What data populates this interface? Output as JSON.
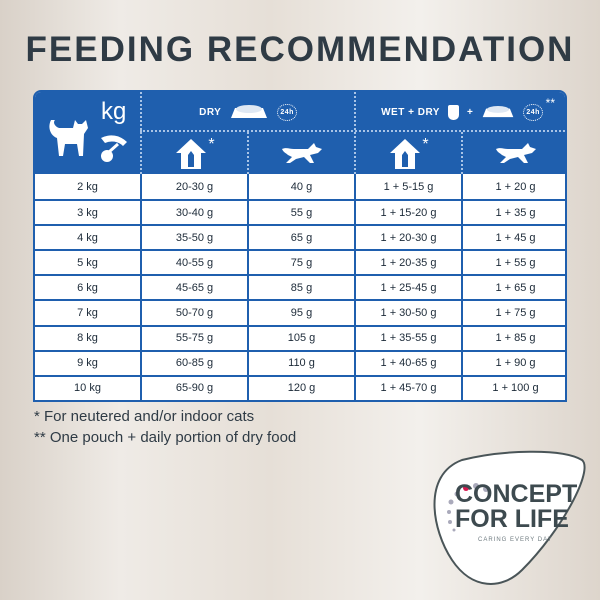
{
  "title": "FEEDING RECOMMENDATION",
  "header": {
    "unit": "kg",
    "dry": "DRY",
    "wet_dry": "WET + DRY",
    "plus": "+",
    "per_day": "24h",
    "double_star": "**",
    "star": "*",
    "icons": [
      "cat-icon",
      "scale-icon",
      "dry-food-bowl-icon",
      "clock-24h-icon",
      "pouch-icon",
      "indoor-cat-house-icon",
      "running-cat-icon"
    ]
  },
  "columns": [
    "Weight",
    "Dry – indoor/neutered",
    "Dry – active",
    "Wet + Dry – indoor/neutered",
    "Wet + Dry – active"
  ],
  "rows": [
    [
      "2 kg",
      "20-30 g",
      "40 g",
      "1 + 5-15 g",
      "1 + 20 g"
    ],
    [
      "3 kg",
      "30-40 g",
      "55 g",
      "1 + 15-20 g",
      "1 + 35 g"
    ],
    [
      "4 kg",
      "35-50 g",
      "65 g",
      "1 + 20-30 g",
      "1 + 45 g"
    ],
    [
      "5 kg",
      "40-55 g",
      "75 g",
      "1 + 20-35 g",
      "1 + 55 g"
    ],
    [
      "6 kg",
      "45-65 g",
      "85 g",
      "1 + 25-45 g",
      "1 + 65 g"
    ],
    [
      "7 kg",
      "50-70 g",
      "95 g",
      "1 + 30-50 g",
      "1 + 75 g"
    ],
    [
      "8 kg",
      "55-75 g",
      "105 g",
      "1 + 35-55 g",
      "1 + 85 g"
    ],
    [
      "9 kg",
      "60-85 g",
      "110 g",
      "1 + 40-65 g",
      "1 + 90 g"
    ],
    [
      "10 kg",
      "65-90 g",
      "120 g",
      "1 + 45-70 g",
      "1 + 100 g"
    ]
  ],
  "notes": [
    "* For neutered and/or indoor cats",
    "** One pouch + daily portion of dry food"
  ],
  "logo": {
    "line1": "CONCEPT",
    "line2": "FOR LIFE",
    "tagline": "CARING EVERY DAY"
  },
  "colors": {
    "table_blue": "#1f5fae",
    "title": "#2f3b45",
    "logo_accent": "#d6174f"
  }
}
